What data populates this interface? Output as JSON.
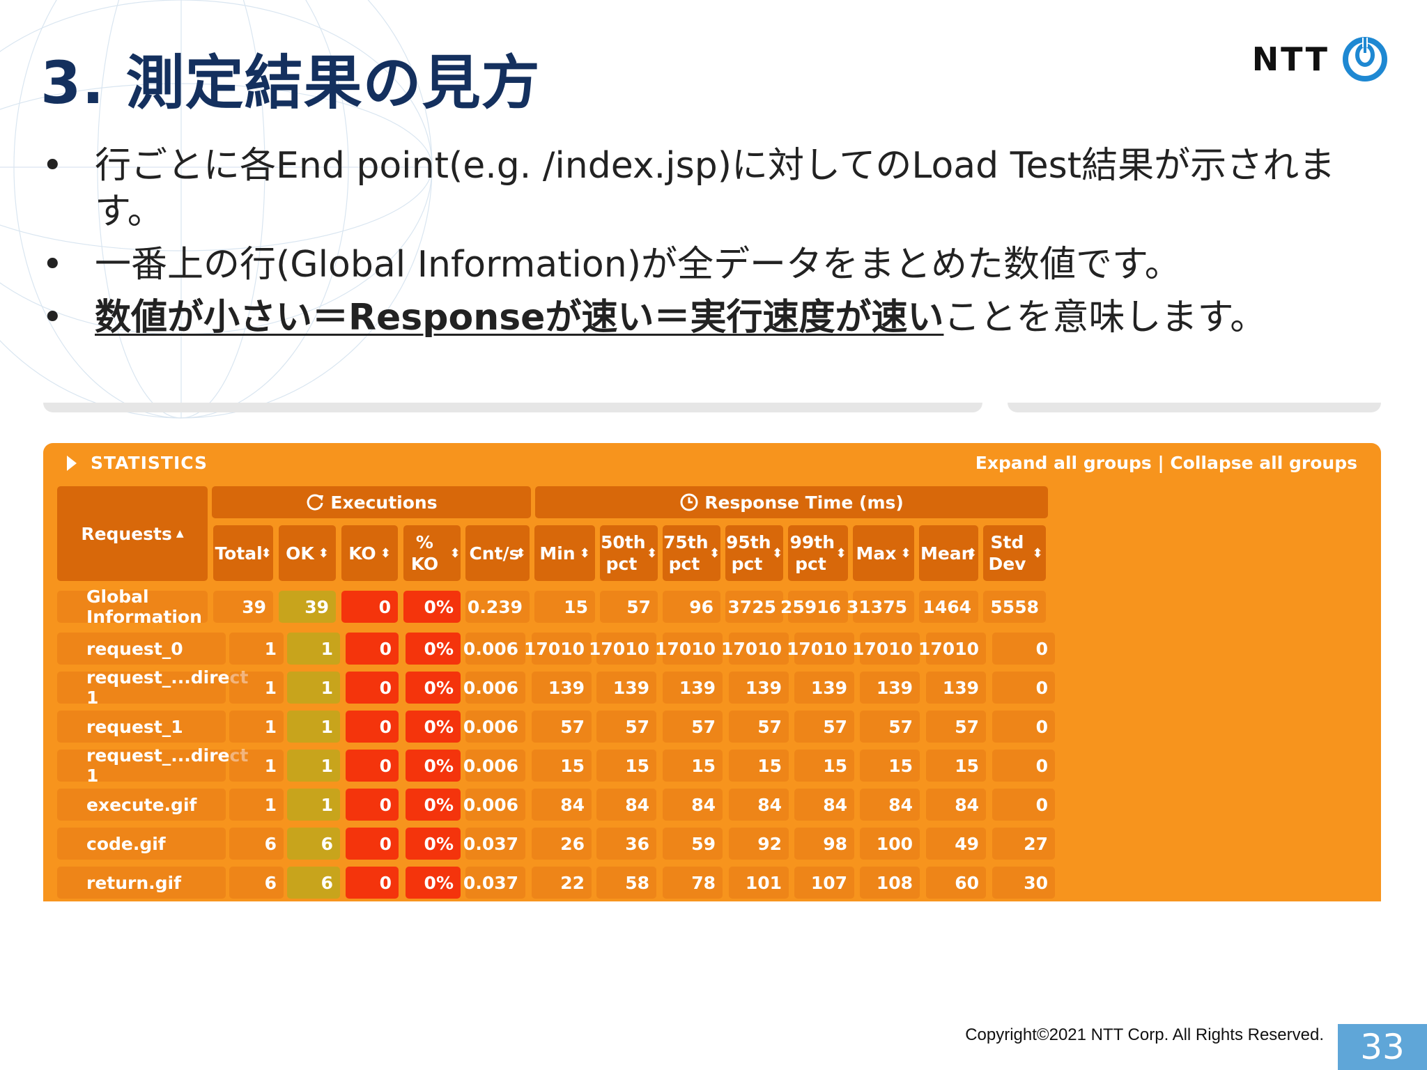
{
  "slide": {
    "title": "3. 測定結果の見方",
    "logo_text": "NTT",
    "bullets": [
      {
        "text": "行ごとに各End point(e.g. /index.jsp)に対してのLoad Test結果が示されます。"
      },
      {
        "text": "一番上の行(Global Information)が全データをまとめた数値です。"
      },
      {
        "bold": "数値が小さい＝Responseが速い＝実行速度が速い",
        "text": "ことを意味します。"
      }
    ],
    "bullet_char": "•",
    "copyright": "Copyright©2021  NTT Corp. All Rights Reserved.",
    "page_number": "33"
  },
  "stats": {
    "header_label": "STATISTICS",
    "links": "Expand all groups | Collapse all groups",
    "group_executions": "Executions",
    "group_response": "Response Time (ms)",
    "requests_header": "Requests",
    "columns": [
      "Total",
      "OK",
      "KO",
      "% KO",
      "Cnt/s",
      "Min",
      "50th pct",
      "75th pct",
      "95th pct",
      "99th pct",
      "Max",
      "Mean",
      "Std Dev"
    ],
    "global_row": {
      "name": "Global Information",
      "values": [
        "39",
        "39",
        "0",
        "0%",
        "0.239",
        "15",
        "57",
        "96",
        "3725",
        "25916",
        "31375",
        "1464",
        "5558"
      ]
    },
    "rows": [
      {
        "name": "request_0",
        "values": [
          "1",
          "1",
          "0",
          "0%",
          "0.006",
          "17010",
          "17010",
          "17010",
          "17010",
          "17010",
          "17010",
          "17010",
          "0"
        ]
      },
      {
        "name": "request_...direct 1",
        "values": [
          "1",
          "1",
          "0",
          "0%",
          "0.006",
          "139",
          "139",
          "139",
          "139",
          "139",
          "139",
          "139",
          "0"
        ]
      },
      {
        "name": "request_1",
        "values": [
          "1",
          "1",
          "0",
          "0%",
          "0.006",
          "57",
          "57",
          "57",
          "57",
          "57",
          "57",
          "57",
          "0"
        ]
      },
      {
        "name": "request_...direct 1",
        "values": [
          "1",
          "1",
          "0",
          "0%",
          "0.006",
          "15",
          "15",
          "15",
          "15",
          "15",
          "15",
          "15",
          "0"
        ]
      },
      {
        "name": "execute.gif",
        "values": [
          "1",
          "1",
          "0",
          "0%",
          "0.006",
          "84",
          "84",
          "84",
          "84",
          "84",
          "84",
          "84",
          "0"
        ]
      },
      {
        "name": "code.gif",
        "values": [
          "6",
          "6",
          "0",
          "0%",
          "0.037",
          "26",
          "36",
          "59",
          "92",
          "98",
          "100",
          "49",
          "27"
        ]
      },
      {
        "name": "return.gif",
        "values": [
          "6",
          "6",
          "0",
          "0%",
          "0.037",
          "22",
          "58",
          "78",
          "101",
          "107",
          "108",
          "60",
          "30"
        ]
      }
    ],
    "colors": {
      "panel": "#f7941d",
      "header_cell": "#d8680a",
      "ok_cell": "#c8a41c",
      "ko_cell": "#f4340c",
      "accent_blue": "#1e88d2",
      "title_navy": "#14305e"
    }
  }
}
